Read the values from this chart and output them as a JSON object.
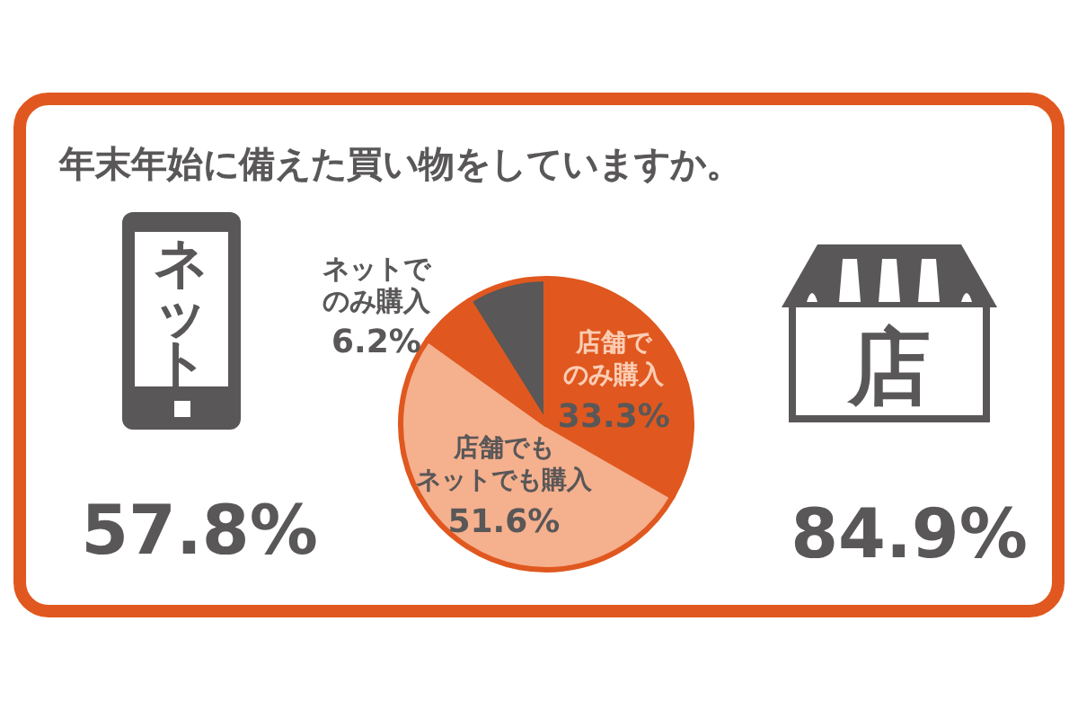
{
  "chart_data": {
    "type": "pie",
    "title": "年末年始に備えた買い物をしていますか。",
    "categories": [
      "店舗でのみ購入",
      "店舗でもネットでも購入",
      "ネットでのみ購入",
      null
    ],
    "values": [
      33.3,
      51.6,
      6.2,
      8.9
    ],
    "colors": [
      "#e0581f",
      "#f5b08e",
      "#e0581f",
      "#595757"
    ],
    "value_labels": [
      "33.3%",
      "51.6%",
      "6.2%",
      null
    ],
    "annotations": [
      "ネット",
      "57.8%",
      "店",
      "84.9%"
    ]
  }
}
